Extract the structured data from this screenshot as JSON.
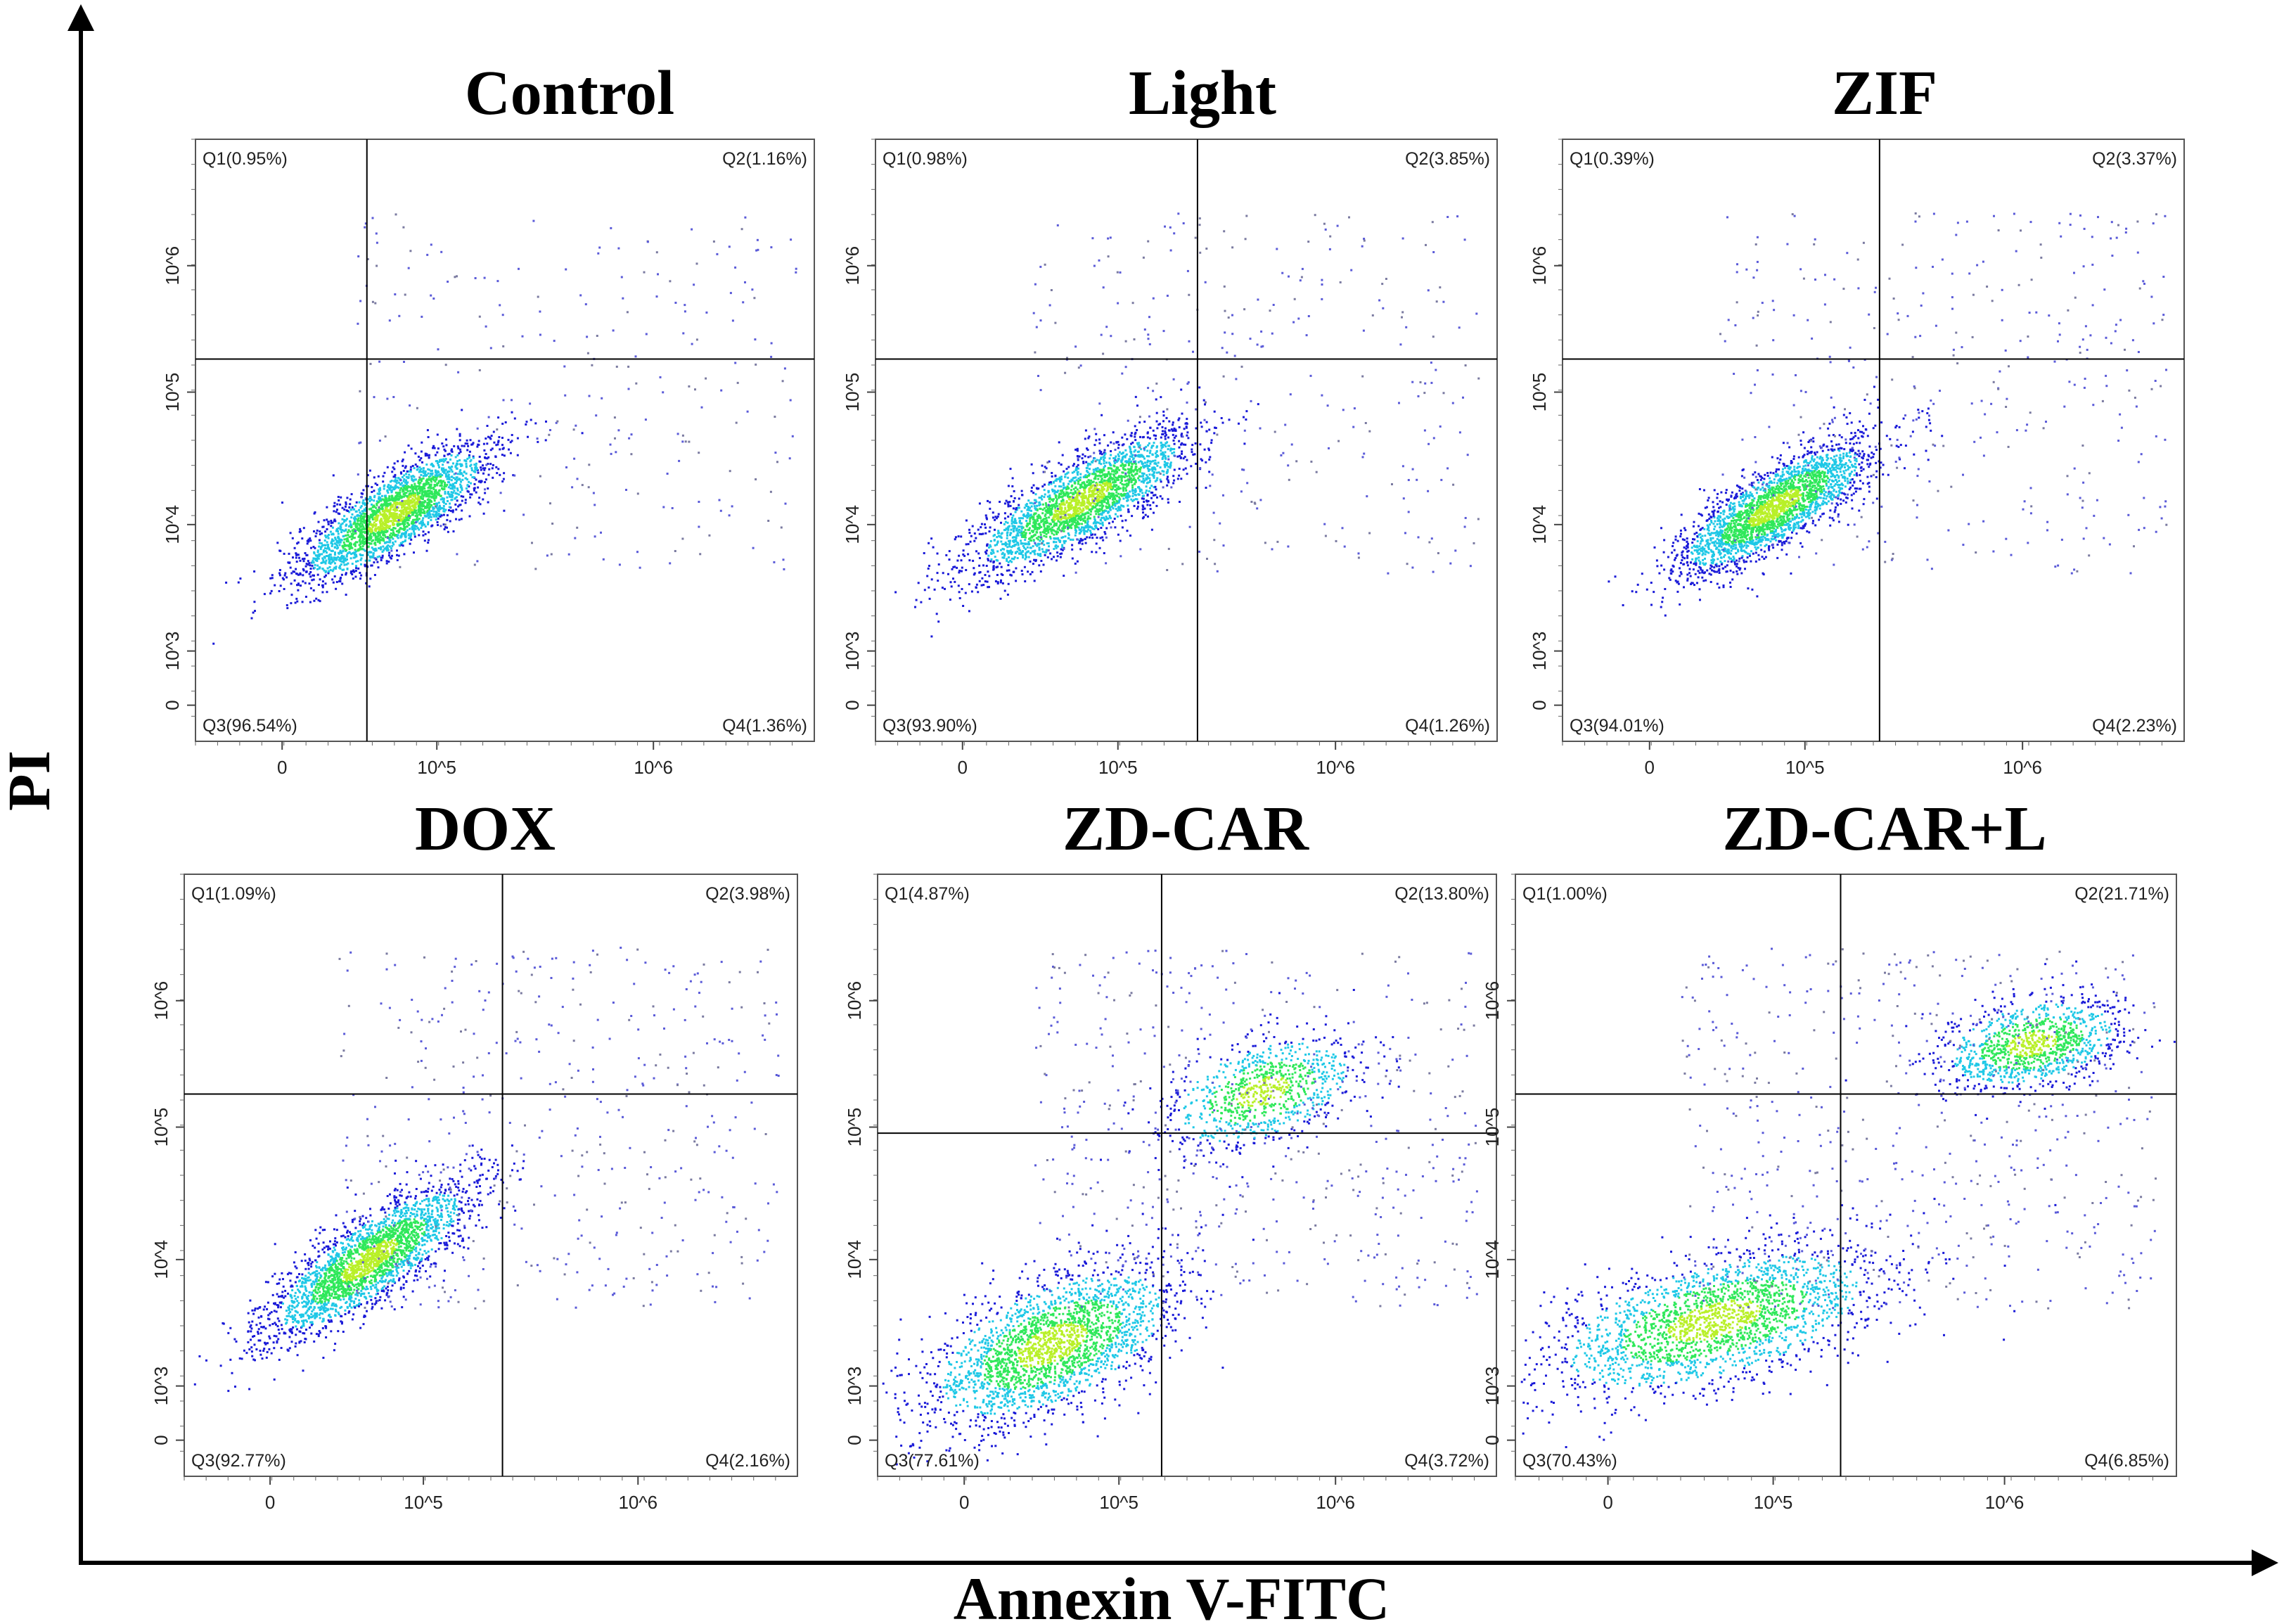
{
  "chart_data": {
    "type": "scatter",
    "description_kind": "flow cytometry dot plots",
    "x_axis_label": "Annexin V-FITC",
    "y_axis_label": "PI",
    "x_ticks": [
      "0",
      "10^5",
      "10^6"
    ],
    "y_ticks": [
      "0",
      "10^3",
      "10^4",
      "10^5",
      "10^6"
    ],
    "colors": {
      "low": "#1a1ad8",
      "mid": "#1ec8e6",
      "high": "#2ee85a",
      "peak": "#b8f028",
      "line": "#000000"
    },
    "panels": [
      {
        "title": "Control",
        "Q1": "Q1(0.95%)",
        "Q2": "Q2(1.16%)",
        "Q3": "Q3(96.54%)",
        "Q4": "Q4(1.36%)"
      },
      {
        "title": "Light",
        "Q1": "Q1(0.98%)",
        "Q2": "Q2(3.85%)",
        "Q3": "Q3(93.90%)",
        "Q4": "Q4(1.26%)"
      },
      {
        "title": "ZIF",
        "Q1": "Q1(0.39%)",
        "Q2": "Q2(3.37%)",
        "Q3": "Q3(94.01%)",
        "Q4": "Q4(2.23%)"
      },
      {
        "title": "DOX",
        "Q1": "Q1(1.09%)",
        "Q2": "Q2(3.98%)",
        "Q3": "Q3(92.77%)",
        "Q4": "Q4(2.16%)"
      },
      {
        "title": "ZD-CAR",
        "Q1": "Q1(4.87%)",
        "Q2": "Q2(13.80%)",
        "Q3": "Q3(77.61%)",
        "Q4": "Q4(3.72%)"
      },
      {
        "title": "ZD-CAR+L",
        "Q1": "Q1(1.00%)",
        "Q2": "Q2(21.71%)",
        "Q3": "Q3(70.43%)",
        "Q4": "Q4(6.85%)"
      }
    ],
    "quadrant_percentages": [
      {
        "Q1": 0.95,
        "Q2": 1.16,
        "Q3": 96.54,
        "Q4": 1.36
      },
      {
        "Q1": 0.98,
        "Q2": 3.85,
        "Q3": 93.9,
        "Q4": 1.26
      },
      {
        "Q1": 0.39,
        "Q2": 3.37,
        "Q3": 94.01,
        "Q4": 2.23
      },
      {
        "Q1": 1.09,
        "Q2": 3.98,
        "Q3": 92.77,
        "Q4": 2.16
      },
      {
        "Q1": 4.87,
        "Q2": 13.8,
        "Q3": 77.61,
        "Q4": 3.72
      },
      {
        "Q1": 1.0,
        "Q2": 21.71,
        "Q3": 70.43,
        "Q4": 6.85
      }
    ]
  }
}
